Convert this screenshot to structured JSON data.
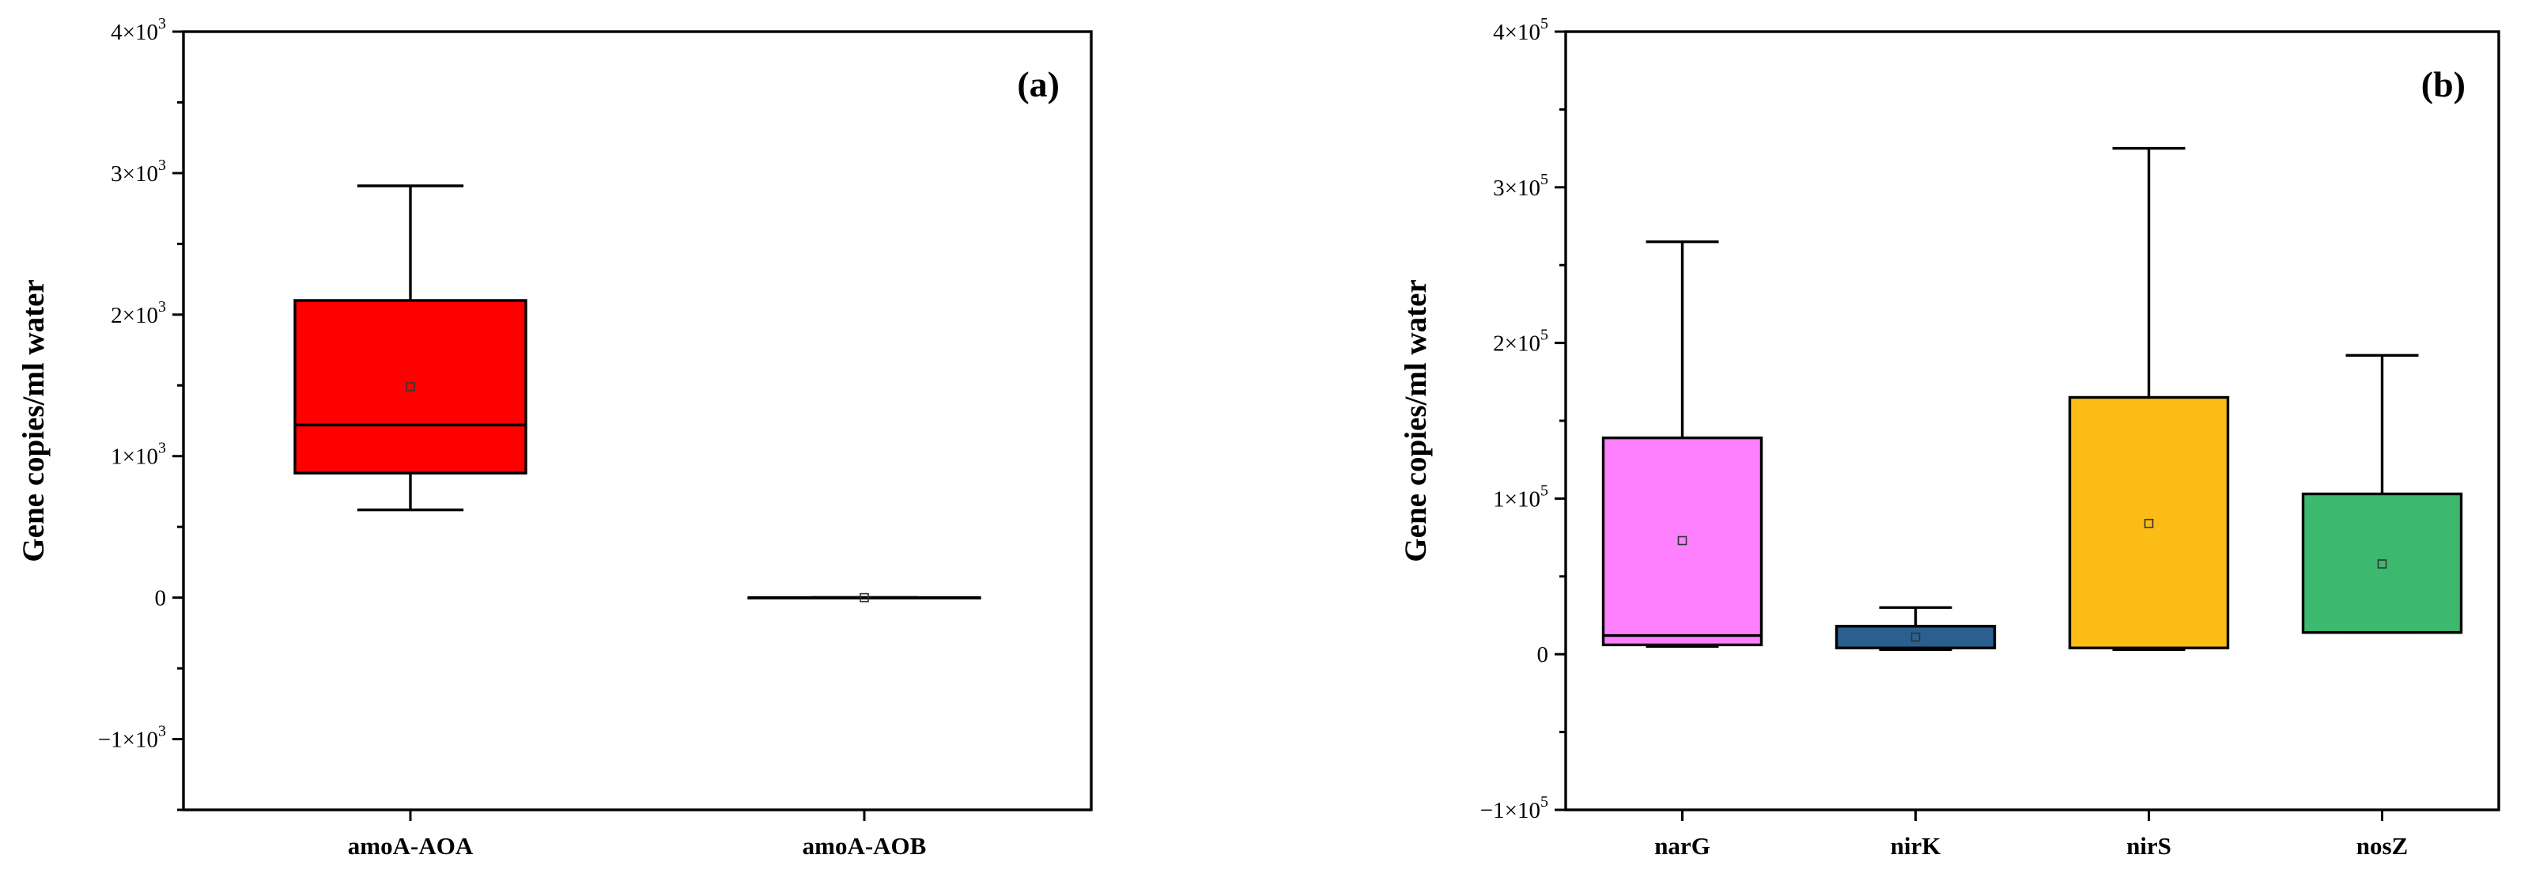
{
  "chart_data": [
    {
      "type": "box",
      "panel_label": "(a)",
      "ylabel": "Gene copies/ml water",
      "ylim": [
        -1500,
        4000
      ],
      "y_ticks": [
        {
          "value": -1000,
          "label": "−1×10",
          "exp": "3"
        },
        {
          "value": 0,
          "label": "0",
          "exp": ""
        },
        {
          "value": 1000,
          "label": "1×10",
          "exp": "3"
        },
        {
          "value": 2000,
          "label": "2×10",
          "exp": "3"
        },
        {
          "value": 3000,
          "label": "3×10",
          "exp": "3"
        },
        {
          "value": 4000,
          "label": "4×10",
          "exp": "3"
        }
      ],
      "minor_tick_step": 500,
      "grid": false,
      "categories": [
        "amoA-AOA",
        "amoA-AOB"
      ],
      "boxes": [
        {
          "category": "amoA-AOA",
          "whisker_low": 620,
          "q1": 880,
          "median": 1220,
          "q3": 2100,
          "whisker_high": 2910,
          "mean": 1490,
          "color": "#ff0000"
        },
        {
          "category": "amoA-AOB",
          "whisker_low": 0,
          "q1": 0,
          "median": 0,
          "q3": 0,
          "whisker_high": 0,
          "mean": 0,
          "color": "#ffffff"
        }
      ]
    },
    {
      "type": "box",
      "panel_label": "(b)",
      "ylabel": "Gene copies/ml water",
      "ylim": [
        -100000,
        400000
      ],
      "y_ticks": [
        {
          "value": -100000,
          "label": "−1×10",
          "exp": "5"
        },
        {
          "value": 0,
          "label": "0",
          "exp": ""
        },
        {
          "value": 100000,
          "label": "1×10",
          "exp": "5"
        },
        {
          "value": 200000,
          "label": "2×10",
          "exp": "5"
        },
        {
          "value": 300000,
          "label": "3×10",
          "exp": "5"
        },
        {
          "value": 400000,
          "label": "4×10",
          "exp": "5"
        }
      ],
      "minor_tick_step": 50000,
      "grid": false,
      "categories": [
        "narG",
        "nirK",
        "nirS",
        "nosZ"
      ],
      "boxes": [
        {
          "category": "narG",
          "whisker_low": 5000,
          "q1": 6000,
          "median": 12000,
          "q3": 139000,
          "whisker_high": 265000,
          "mean": 73000,
          "color": "#ff80ff"
        },
        {
          "category": "nirK",
          "whisker_low": 3000,
          "q1": 4000,
          "median": 4000,
          "q3": 18000,
          "whisker_high": 30000,
          "mean": 11000,
          "color": "#2b5f8f"
        },
        {
          "category": "nirS",
          "whisker_low": 3000,
          "q1": 4000,
          "median": 4000,
          "q3": 165000,
          "whisker_high": 325000,
          "mean": 84000,
          "color": "#fbbc16"
        },
        {
          "category": "nosZ",
          "whisker_low": 14000,
          "q1": 14000,
          "median": 14000,
          "q3": 103000,
          "whisker_high": 192000,
          "mean": 58000,
          "color": "#3cb96e"
        }
      ]
    }
  ]
}
